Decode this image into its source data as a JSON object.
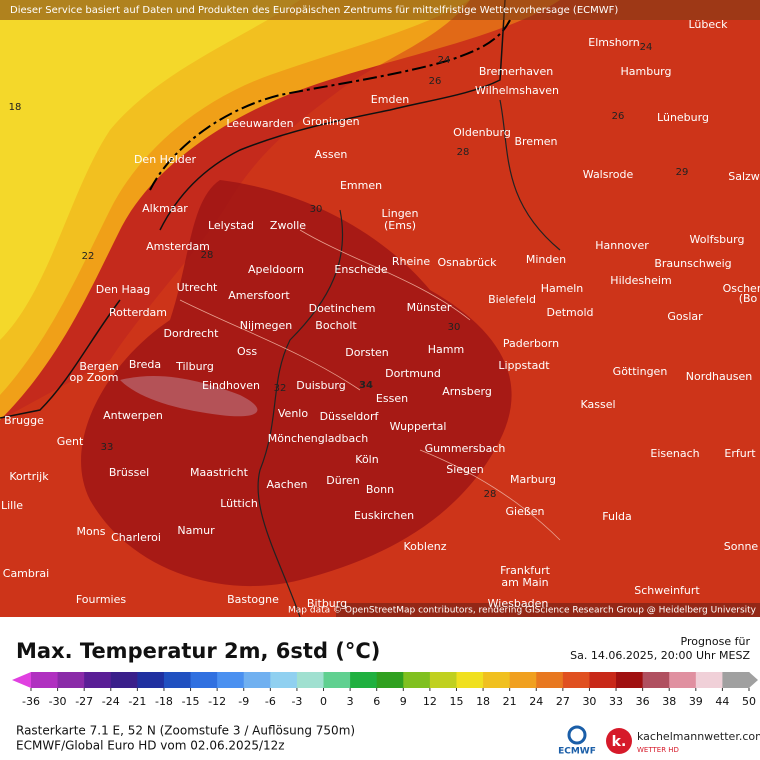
{
  "header": {
    "notice": "Dieser Service basiert auf Daten und Produkten des Europäischen Zentrums für mittelfristige Wettervorhersage (ECMWF)",
    "attribution": "Map data © OpenStreetMap contributors, rendering GIScience Research Group @ Heidelberg University"
  },
  "map": {
    "cities": [
      "Lübeck",
      "Elmshorn",
      "Hamburg",
      "Bremerhaven",
      "Wilhelmshaven",
      "Emden",
      "Leeuwarden",
      "Groningen",
      "Oldenburg",
      "Bremen",
      "Lüneburg",
      "Assen",
      "Den Helder",
      "Emmen",
      "Walsrode",
      "Salzw",
      "Alkmaar",
      "Lingen",
      "(Ems)",
      "Lelystad",
      "Zwolle",
      "Amsterdam",
      "Hannover",
      "Wolfsburg",
      "Rheine",
      "Osnabrück",
      "Minden",
      "Apeldoorn",
      "Enschede",
      "Braunschweig",
      "Den Haag",
      "Utrecht",
      "Amersfoort",
      "Hildesheim",
      "Hameln",
      "Oscher",
      "(Bo",
      "Bielefeld",
      "Rotterdam",
      "Doetinchem",
      "Münster",
      "Detmold",
      "Goslar",
      "Nijmegen",
      "Bocholt",
      "Dordrecht",
      "Paderborn",
      "Oss",
      "Dorsten",
      "Hamm",
      "Bergen",
      "op Zoom",
      "Breda",
      "Tilburg",
      "Lippstadt",
      "Göttingen",
      "Dortmund",
      "Eindhoven",
      "Duisburg",
      "Nordhausen",
      "Arnsberg",
      "Essen",
      "Antwerpen",
      "Venlo",
      "Düsseldorf",
      "Wuppertal",
      "Kassel",
      "Brugge",
      "Gent",
      "Mönchengladbach",
      "Gummersbach",
      "Eisenach",
      "Erfurt",
      "Köln",
      "Brüssel",
      "Maastricht",
      "Siegen",
      "Kortrijk",
      "Aachen",
      "Düren",
      "Bonn",
      "Marburg",
      "Lille",
      "Lüttich",
      "Euskirchen",
      "Gießen",
      "Fulda",
      "Mons",
      "Charleroi",
      "Namur",
      "Koblenz",
      "Sonne",
      "Cambrai",
      "Frankfurt",
      "am Main",
      "Schweinfurt",
      "Fourmies",
      "Bastogne",
      "Bitburg",
      "Wiesbaden"
    ],
    "contour_labels": [
      18,
      22,
      24,
      24,
      26,
      26,
      28,
      29,
      30,
      28,
      30,
      32,
      33,
      28,
      34
    ]
  },
  "footer": {
    "title": "Max. Temperatur 2m, 6std (°C)",
    "forecast_label": "Prognose für",
    "forecast_time": "Sa. 14.06.2025, 20:00 Uhr MESZ",
    "grid_info": "Rasterkarte 7.1 E, 52 N (Zoomstufe 3 / Auflösung 750m)",
    "model_info": "ECMWF/Global Euro HD vom 02.06.2025/12z",
    "ecmwf_logo": "ECMWF",
    "brand": "kachelmannwetter.com",
    "brand_sub": "WETTER HD"
  },
  "legend": {
    "ticks": [
      -36,
      -30,
      -27,
      -24,
      -21,
      -18,
      -15,
      -12,
      -9,
      -6,
      -3,
      0,
      3,
      6,
      9,
      12,
      15,
      18,
      21,
      24,
      27,
      30,
      33,
      36,
      38,
      39,
      44,
      50
    ],
    "colors": [
      "#e040e0",
      "#b030c0",
      "#8a2aa8",
      "#5a1e96",
      "#3a1f8a",
      "#2030a0",
      "#2050c0",
      "#3070e0",
      "#4a90f0",
      "#70b0f0",
      "#90d0f0",
      "#a0e0d0",
      "#60d090",
      "#20b040",
      "#30a020",
      "#80c020",
      "#c0d020",
      "#f0e020",
      "#f0c020",
      "#f0a020",
      "#e87820",
      "#e05020",
      "#c82818",
      "#a01010",
      "#b05060",
      "#e090a0",
      "#f0d0d8",
      "#a0a0a0"
    ]
  }
}
